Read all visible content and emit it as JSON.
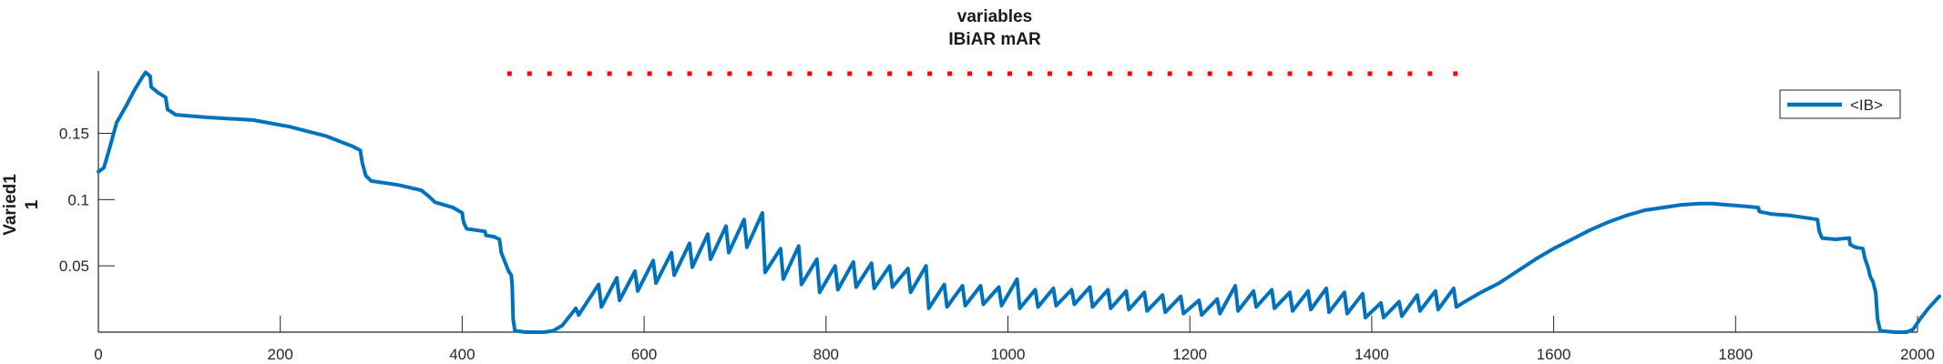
{
  "chart_data": {
    "type": "line",
    "title_lines": [
      "variables",
      "IBiAR mAR"
    ],
    "xlabel": "",
    "ylabel_lines": [
      "Varied1",
      "1"
    ],
    "xlim": [
      0,
      2000
    ],
    "ylim": [
      0,
      0.197
    ],
    "x_ticks": [
      0,
      200,
      400,
      600,
      800,
      1000,
      1200,
      1400,
      1600,
      1800,
      2000
    ],
    "x_tick_labels": [
      "0",
      "200",
      "400",
      "600",
      "800",
      "1000",
      "1200",
      "1400",
      "1600",
      "1800",
      "2000"
    ],
    "y_ticks": [
      0.05,
      0.1,
      0.15
    ],
    "y_tick_labels": [
      "0.05",
      "0.1",
      "0.15"
    ],
    "grid": false,
    "legend": {
      "position": "top-right",
      "entries": [
        "<IB>"
      ]
    },
    "series": [
      {
        "name": "<IB>",
        "color": "#0072BD",
        "points": [
          [
            0,
            0.121
          ],
          [
            6,
            0.124
          ],
          [
            12,
            0.138
          ],
          [
            20,
            0.158
          ],
          [
            30,
            0.17
          ],
          [
            40,
            0.183
          ],
          [
            48,
            0.192
          ],
          [
            52,
            0.196
          ],
          [
            57,
            0.193
          ],
          [
            58,
            0.185
          ],
          [
            65,
            0.181
          ],
          [
            74,
            0.177
          ],
          [
            76,
            0.168
          ],
          [
            85,
            0.164
          ],
          [
            120,
            0.162
          ],
          [
            170,
            0.16
          ],
          [
            210,
            0.155
          ],
          [
            250,
            0.148
          ],
          [
            280,
            0.14
          ],
          [
            288,
            0.137
          ],
          [
            290,
            0.128
          ],
          [
            294,
            0.118
          ],
          [
            300,
            0.114
          ],
          [
            330,
            0.111
          ],
          [
            355,
            0.107
          ],
          [
            364,
            0.102
          ],
          [
            370,
            0.098
          ],
          [
            390,
            0.094
          ],
          [
            400,
            0.09
          ],
          [
            401,
            0.085
          ],
          [
            402,
            0.082
          ],
          [
            405,
            0.078
          ],
          [
            425,
            0.076
          ],
          [
            426,
            0.073
          ],
          [
            435,
            0.072
          ],
          [
            441,
            0.07
          ],
          [
            443,
            0.06
          ],
          [
            447,
            0.053
          ],
          [
            451,
            0.046
          ],
          [
            454,
            0.043
          ],
          [
            455,
            0.035
          ],
          [
            456,
            0.01
          ],
          [
            458,
            0.001
          ],
          [
            470,
            0.0
          ],
          [
            490,
            0.0
          ],
          [
            500,
            0.001
          ],
          [
            510,
            0.005
          ],
          [
            525,
            0.018
          ],
          [
            528,
            0.013
          ],
          [
            550,
            0.036
          ],
          [
            553,
            0.019
          ],
          [
            570,
            0.041
          ],
          [
            573,
            0.024
          ],
          [
            590,
            0.046
          ],
          [
            593,
            0.031
          ],
          [
            610,
            0.054
          ],
          [
            613,
            0.037
          ],
          [
            630,
            0.06
          ],
          [
            633,
            0.043
          ],
          [
            650,
            0.067
          ],
          [
            653,
            0.049
          ],
          [
            670,
            0.074
          ],
          [
            673,
            0.055
          ],
          [
            690,
            0.08
          ],
          [
            693,
            0.06
          ],
          [
            710,
            0.085
          ],
          [
            713,
            0.064
          ],
          [
            730,
            0.09
          ],
          [
            733,
            0.045
          ],
          [
            750,
            0.063
          ],
          [
            753,
            0.04
          ],
          [
            770,
            0.065
          ],
          [
            773,
            0.036
          ],
          [
            790,
            0.055
          ],
          [
            793,
            0.03
          ],
          [
            810,
            0.05
          ],
          [
            813,
            0.032
          ],
          [
            830,
            0.053
          ],
          [
            833,
            0.034
          ],
          [
            850,
            0.052
          ],
          [
            853,
            0.033
          ],
          [
            870,
            0.05
          ],
          [
            873,
            0.034
          ],
          [
            890,
            0.048
          ],
          [
            893,
            0.03
          ],
          [
            910,
            0.05
          ],
          [
            913,
            0.018
          ],
          [
            930,
            0.036
          ],
          [
            933,
            0.019
          ],
          [
            950,
            0.035
          ],
          [
            953,
            0.02
          ],
          [
            970,
            0.035
          ],
          [
            973,
            0.021
          ],
          [
            990,
            0.034
          ],
          [
            993,
            0.02
          ],
          [
            1010,
            0.04
          ],
          [
            1013,
            0.018
          ],
          [
            1030,
            0.032
          ],
          [
            1033,
            0.019
          ],
          [
            1050,
            0.033
          ],
          [
            1053,
            0.02
          ],
          [
            1070,
            0.032
          ],
          [
            1073,
            0.021
          ],
          [
            1090,
            0.034
          ],
          [
            1093,
            0.019
          ],
          [
            1110,
            0.032
          ],
          [
            1113,
            0.018
          ],
          [
            1130,
            0.031
          ],
          [
            1133,
            0.017
          ],
          [
            1150,
            0.03
          ],
          [
            1153,
            0.016
          ],
          [
            1170,
            0.028
          ],
          [
            1173,
            0.015
          ],
          [
            1190,
            0.027
          ],
          [
            1193,
            0.014
          ],
          [
            1210,
            0.024
          ],
          [
            1213,
            0.013
          ],
          [
            1230,
            0.025
          ],
          [
            1233,
            0.014
          ],
          [
            1250,
            0.035
          ],
          [
            1253,
            0.016
          ],
          [
            1270,
            0.031
          ],
          [
            1273,
            0.019
          ],
          [
            1290,
            0.032
          ],
          [
            1293,
            0.018
          ],
          [
            1310,
            0.03
          ],
          [
            1313,
            0.016
          ],
          [
            1330,
            0.031
          ],
          [
            1333,
            0.017
          ],
          [
            1350,
            0.033
          ],
          [
            1353,
            0.015
          ],
          [
            1370,
            0.03
          ],
          [
            1373,
            0.014
          ],
          [
            1390,
            0.029
          ],
          [
            1393,
            0.011
          ],
          [
            1410,
            0.022
          ],
          [
            1413,
            0.011
          ],
          [
            1430,
            0.023
          ],
          [
            1433,
            0.012
          ],
          [
            1450,
            0.028
          ],
          [
            1453,
            0.016
          ],
          [
            1470,
            0.031
          ],
          [
            1473,
            0.017
          ],
          [
            1490,
            0.033
          ],
          [
            1493,
            0.019
          ],
          [
            1500,
            0.022
          ],
          [
            1520,
            0.03
          ],
          [
            1540,
            0.037
          ],
          [
            1560,
            0.046
          ],
          [
            1580,
            0.055
          ],
          [
            1600,
            0.063
          ],
          [
            1620,
            0.07
          ],
          [
            1640,
            0.077
          ],
          [
            1660,
            0.083
          ],
          [
            1680,
            0.088
          ],
          [
            1700,
            0.092
          ],
          [
            1720,
            0.094
          ],
          [
            1740,
            0.096
          ],
          [
            1760,
            0.097
          ],
          [
            1775,
            0.097
          ],
          [
            1790,
            0.096
          ],
          [
            1810,
            0.095
          ],
          [
            1825,
            0.094
          ],
          [
            1826,
            0.091
          ],
          [
            1840,
            0.089
          ],
          [
            1860,
            0.088
          ],
          [
            1880,
            0.086
          ],
          [
            1890,
            0.085
          ],
          [
            1892,
            0.076
          ],
          [
            1895,
            0.071
          ],
          [
            1910,
            0.07
          ],
          [
            1925,
            0.071
          ],
          [
            1926,
            0.066
          ],
          [
            1932,
            0.064
          ],
          [
            1940,
            0.063
          ],
          [
            1942,
            0.056
          ],
          [
            1946,
            0.048
          ],
          [
            1948,
            0.042
          ],
          [
            1951,
            0.038
          ],
          [
            1954,
            0.03
          ],
          [
            1956,
            0.01
          ],
          [
            1959,
            0.001
          ],
          [
            1975,
            0.0
          ],
          [
            1988,
            0.0
          ],
          [
            1995,
            0.002
          ],
          [
            2003,
            0.01
          ],
          [
            2012,
            0.018
          ],
          [
            2020,
            0.024
          ],
          [
            2024,
            0.027
          ]
        ]
      }
    ],
    "annotations": [
      {
        "type": "dotted-line",
        "color": "#FF0000",
        "y": 0.195,
        "x_start": 452,
        "x_end": 1492,
        "dot_x": [
          452,
          474,
          496,
          518,
          540,
          562,
          584,
          606,
          628,
          650,
          672,
          694,
          716,
          738,
          760,
          782,
          804,
          826,
          848,
          870,
          892,
          914,
          936,
          958,
          980,
          1002,
          1024,
          1046,
          1068,
          1090,
          1112,
          1134,
          1156,
          1178,
          1200,
          1222,
          1244,
          1266,
          1288,
          1310,
          1332,
          1354,
          1376,
          1398,
          1420,
          1442,
          1464,
          1492
        ]
      }
    ]
  }
}
